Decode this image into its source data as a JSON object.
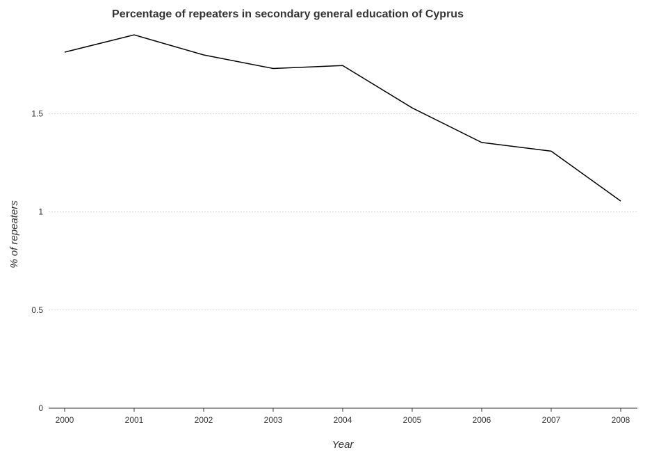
{
  "chart_data": {
    "type": "line",
    "title": "Percentage of repeaters in secondary general education of Cyprus",
    "xlabel": "Year",
    "ylabel": "% of repeaters",
    "categories": [
      "2000",
      "2001",
      "2002",
      "2003",
      "2004",
      "2005",
      "2006",
      "2007",
      "2008"
    ],
    "series": [
      {
        "values": [
          1.813,
          1.901,
          1.799,
          1.73,
          1.745,
          1.529,
          1.353,
          1.309,
          1.055
        ],
        "color": "#000000"
      }
    ],
    "yticks": [
      "0",
      "0.5",
      "1",
      "1.5"
    ],
    "ylim": [
      0,
      1.93
    ],
    "grid": "horizontal dashed",
    "legend": "none"
  }
}
